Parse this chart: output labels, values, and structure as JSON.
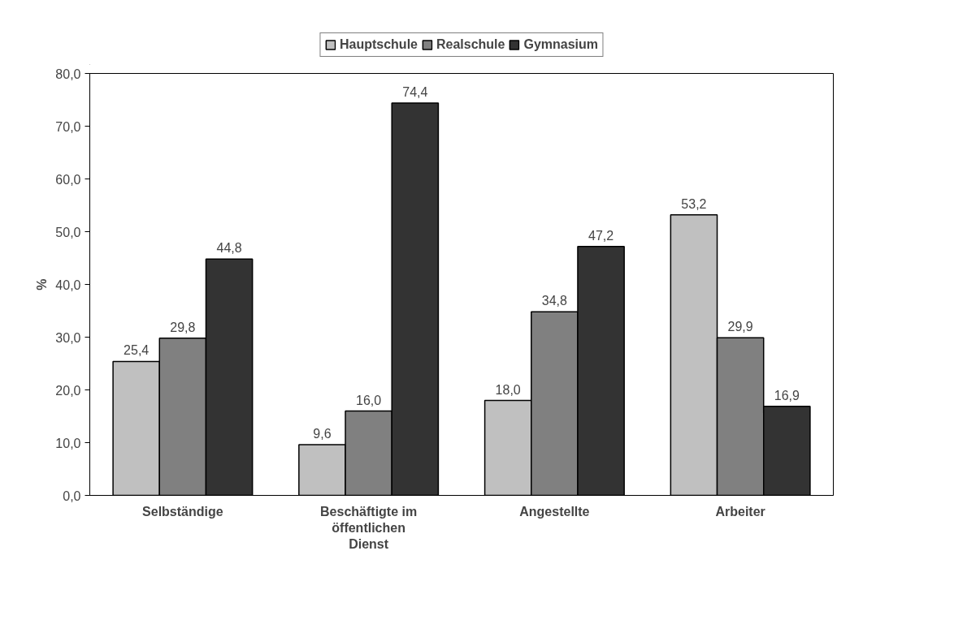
{
  "chart_data": {
    "type": "bar",
    "ylabel": "%",
    "categories": [
      "Selbständige",
      "Beschäftigte im öffentlichen Dienst",
      "Angestellte",
      "Arbeiter"
    ],
    "series": [
      {
        "name": "Hauptschule",
        "color": "#c0c0c0",
        "values": [
          25.4,
          9.6,
          18.0,
          53.2
        ]
      },
      {
        "name": "Realschule",
        "color": "#808080",
        "values": [
          29.8,
          16.0,
          34.8,
          29.9
        ]
      },
      {
        "name": "Gymnasium",
        "color": "#333333",
        "values": [
          44.8,
          74.4,
          47.2,
          16.9
        ]
      }
    ],
    "ylim": [
      0,
      80
    ],
    "yticks": [
      {
        "value": 0,
        "label": "0,0"
      },
      {
        "value": 10,
        "label": "10,0"
      },
      {
        "value": 20,
        "label": "20,0"
      },
      {
        "value": 30,
        "label": "30,0"
      },
      {
        "value": 40,
        "label": "40,0"
      },
      {
        "value": 50,
        "label": "50,0"
      },
      {
        "value": 60,
        "label": "60,0"
      },
      {
        "value": 70,
        "label": "70,0"
      },
      {
        "value": 80,
        "label": "80,0"
      }
    ],
    "value_labels": [
      [
        "25,4",
        "9,6",
        "18,0",
        "53,2"
      ],
      [
        "29,8",
        "16,0",
        "34,8",
        "29,9"
      ],
      [
        "44,8",
        "74,4",
        "47,2",
        "16,9"
      ]
    ],
    "grid": false,
    "legend": "top"
  }
}
